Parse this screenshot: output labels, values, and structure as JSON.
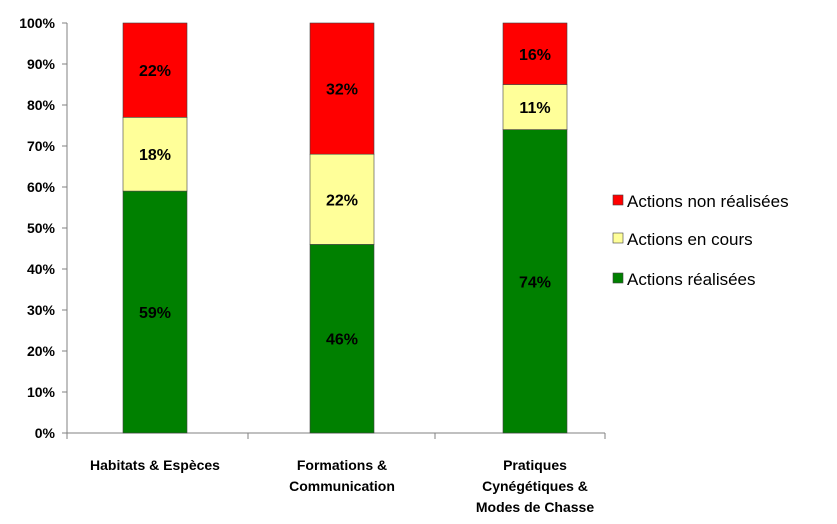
{
  "chart_data": {
    "type": "bar",
    "stacked": true,
    "categories": [
      [
        "Habitats & Espèces"
      ],
      [
        "Formations &",
        "Communication"
      ],
      [
        "Pratiques",
        "Cynégétiques &",
        "Modes de Chasse"
      ]
    ],
    "series": [
      {
        "name": "Actions réalisées",
        "color": "#008000",
        "values": [
          59,
          46,
          74
        ],
        "labels": [
          "59%",
          "46%",
          "74%"
        ]
      },
      {
        "name": "Actions en cours",
        "color": "#ffff99",
        "values": [
          18,
          22,
          11
        ],
        "labels": [
          "18%",
          "22%",
          "11%"
        ]
      },
      {
        "name": "Actions non réalisées",
        "color": "#ff0000",
        "values": [
          22,
          32,
          16
        ],
        "labels": [
          "22%",
          "32%",
          "16%"
        ]
      }
    ],
    "y_ticks": [
      "0%",
      "10%",
      "20%",
      "30%",
      "40%",
      "50%",
      "60%",
      "70%",
      "80%",
      "90%",
      "100%"
    ],
    "ylim": [
      0,
      100
    ],
    "legend_position": "right",
    "legend_order": [
      "Actions non réalisées",
      "Actions en cours",
      "Actions réalisées"
    ],
    "grid": false
  }
}
